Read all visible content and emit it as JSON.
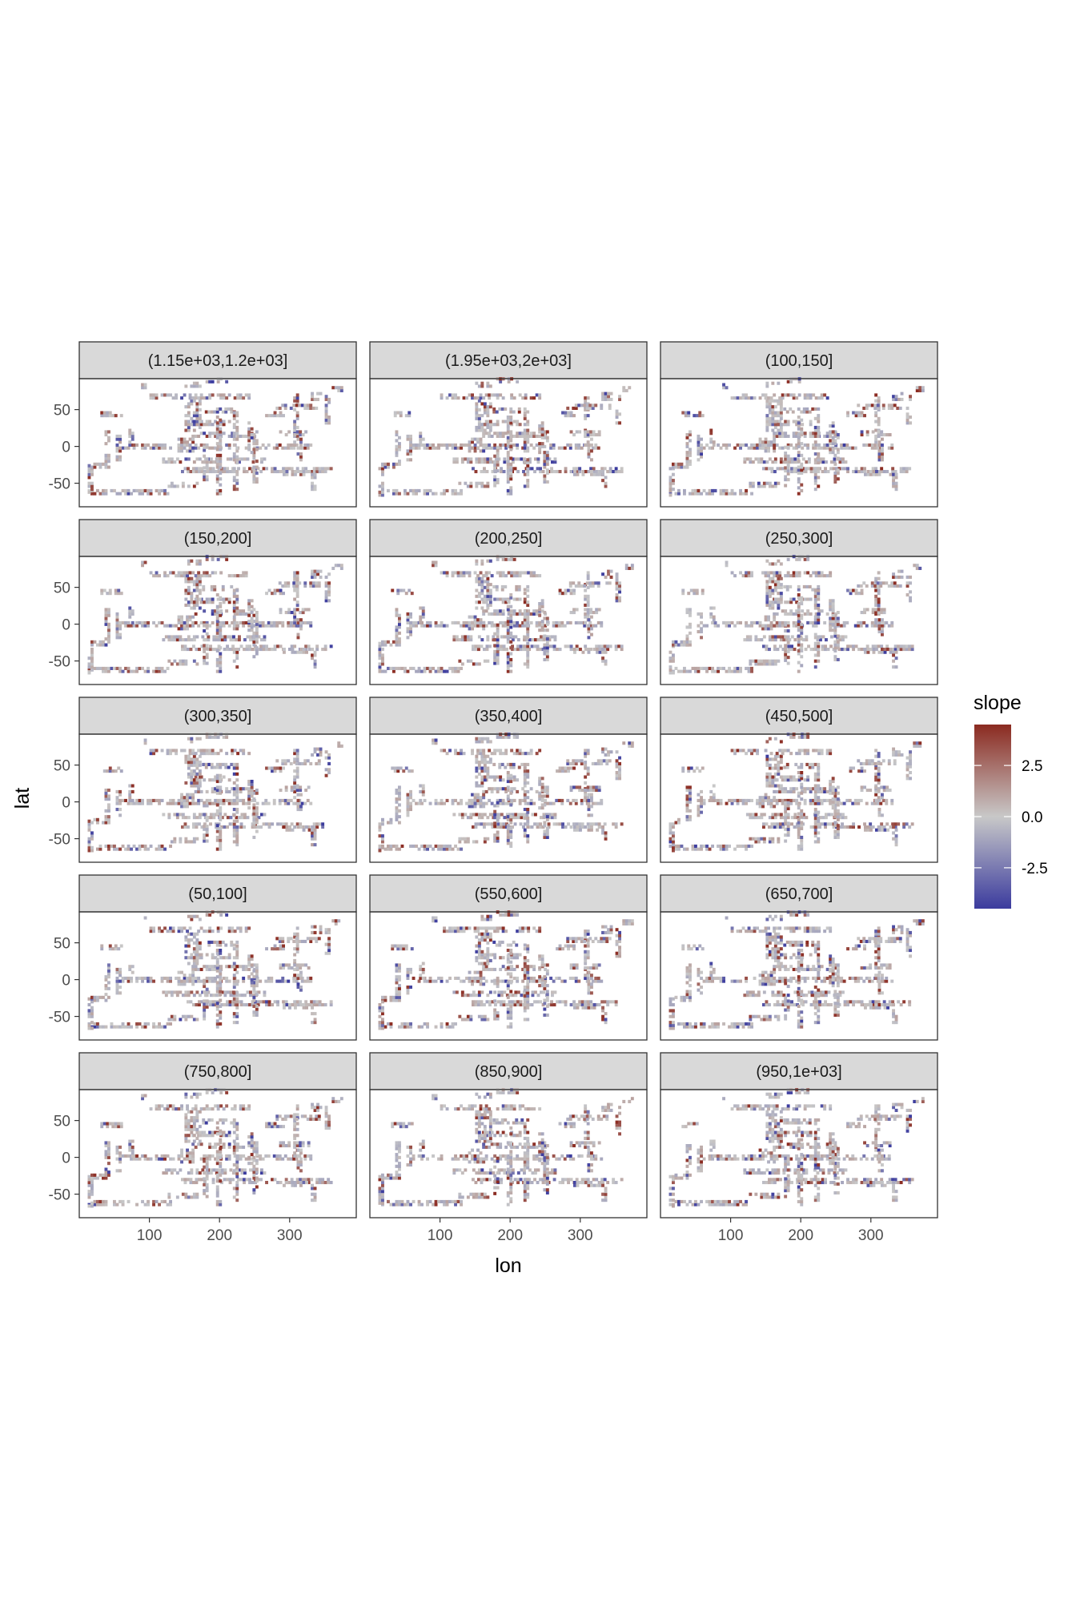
{
  "chart_data": {
    "type": "heatmap",
    "facet_labels": [
      "(1.15e+03,1.2e+03]",
      "(1.95e+03,2e+03]",
      "(100,150]",
      "(150,200]",
      "(200,250]",
      "(250,300]",
      "(300,350]",
      "(350,400]",
      "(450,500]",
      "(50,100]",
      "(550,600]",
      "(650,700]",
      "(750,800]",
      "(850,900]",
      "(950,1e+03]"
    ],
    "xlabel": "lon",
    "ylabel": "lat",
    "x_ticks": [
      100,
      200,
      300
    ],
    "x_tick_labels": [
      "100",
      "200",
      "300"
    ],
    "y_ticks": [
      50,
      0,
      -50
    ],
    "y_tick_labels": [
      "50",
      "0",
      "-50"
    ],
    "xlim": [
      0,
      395
    ],
    "ylim": [
      -82,
      92
    ],
    "grid": false,
    "legend": {
      "title": "slope",
      "position": "right",
      "ticks": [
        2.5,
        0.0,
        -2.5
      ],
      "tick_labels": [
        "2.5",
        "0.0",
        "-2.5"
      ],
      "range": [
        -4.5,
        4.5
      ],
      "colors": {
        "low": "#3b3b9e",
        "mid": "#c8c8c8",
        "high": "#8b2a20"
      }
    }
  }
}
